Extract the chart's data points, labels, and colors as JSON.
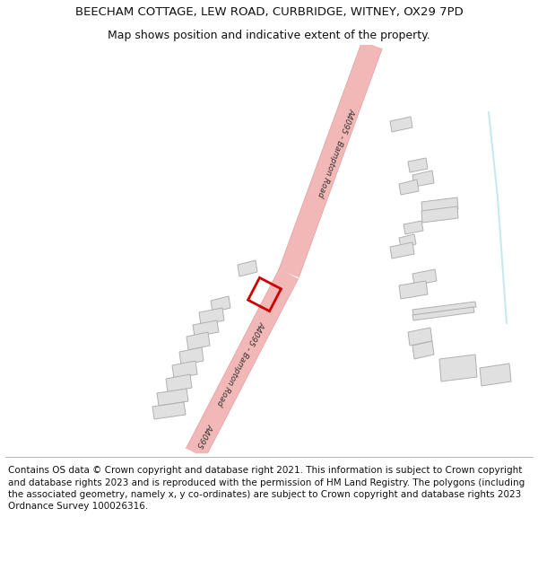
{
  "title_line1": "BEECHAM COTTAGE, LEW ROAD, CURBRIDGE, WITNEY, OX29 7PD",
  "title_line2": "Map shows position and indicative extent of the property.",
  "footer": "Contains OS data © Crown copyright and database right 2021. This information is subject to Crown copyright and database rights 2023 and is reproduced with the permission of HM Land Registry. The polygons (including the associated geometry, namely x, y co-ordinates) are subject to Crown copyright and database rights 2023 Ordnance Survey 100026316.",
  "background_color": "#ffffff",
  "road_color": "#f2b8b8",
  "road_edge_color": "#e09090",
  "building_fill": "#e0e0e0",
  "building_edge": "#b0b0b0",
  "property_edge": "#cc0000",
  "road_label": "A4095 - Bampton Road",
  "road_label_short": "A4095",
  "water_color": "#c8e8f0",
  "text_color": "#333333",
  "title_fontsize": 9.5,
  "subtitle_fontsize": 9,
  "footer_fontsize": 7.5,
  "road_label_fontsize": 6.5
}
